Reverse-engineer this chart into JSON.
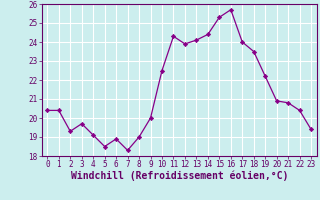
{
  "x": [
    0,
    1,
    2,
    3,
    4,
    5,
    6,
    7,
    8,
    9,
    10,
    11,
    12,
    13,
    14,
    15,
    16,
    17,
    18,
    19,
    20,
    21,
    22,
    23
  ],
  "y": [
    20.4,
    20.4,
    19.3,
    19.7,
    19.1,
    18.5,
    18.9,
    18.3,
    19.0,
    20.0,
    22.5,
    24.3,
    23.9,
    24.1,
    24.4,
    25.3,
    25.7,
    24.0,
    23.5,
    22.2,
    20.9,
    20.8,
    20.4,
    19.4
  ],
  "line_color": "#880088",
  "marker_color": "#880088",
  "bg_color": "#cceeee",
  "grid_color": "#aadddd",
  "xlabel": "Windchill (Refroidissement éolien,°C)",
  "ylim": [
    18,
    26
  ],
  "xlim_min": -0.5,
  "xlim_max": 23.5,
  "yticks": [
    18,
    19,
    20,
    21,
    22,
    23,
    24,
    25,
    26
  ],
  "xticks": [
    0,
    1,
    2,
    3,
    4,
    5,
    6,
    7,
    8,
    9,
    10,
    11,
    12,
    13,
    14,
    15,
    16,
    17,
    18,
    19,
    20,
    21,
    22,
    23
  ],
  "tick_label_fontsize": 5.5,
  "xlabel_fontsize": 7.0
}
